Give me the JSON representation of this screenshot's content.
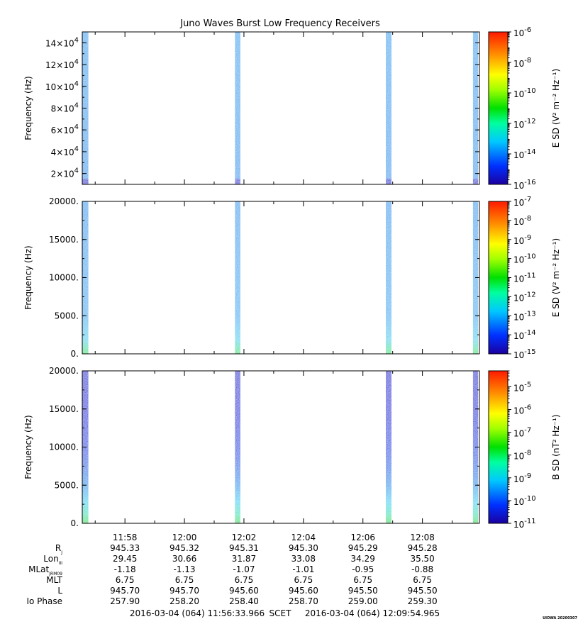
{
  "title": "Juno Waves Burst Low Frequency Receivers",
  "credit": "UIOWA 20200307",
  "time_axis": {
    "tick_labels": [
      "11:58",
      "12:00",
      "12:02",
      "12:04",
      "12:06",
      "12:08"
    ],
    "tick_minutes": [
      718,
      720,
      722,
      724,
      726,
      728
    ],
    "start_minutes": 716.5655,
    "end_minutes": 729.9161
  },
  "bursts": [
    {
      "start": 716.57,
      "end": 716.77
    },
    {
      "start": 721.7,
      "end": 721.88
    },
    {
      "start": 726.77,
      "end": 726.96
    },
    {
      "start": 729.7,
      "end": 729.87
    }
  ],
  "panels": [
    {
      "ylabel": "Frequency (Hz)",
      "yticks": [
        {
          "value": 20000,
          "mant": "2×10",
          "exp": "4"
        },
        {
          "value": 40000,
          "mant": "4×10",
          "exp": "4"
        },
        {
          "value": 60000,
          "mant": "6×10",
          "exp": "4"
        },
        {
          "value": 80000,
          "mant": "8×10",
          "exp": "4"
        },
        {
          "value": 100000,
          "mant": "10×10",
          "exp": "4"
        },
        {
          "value": 120000,
          "mant": "12×10",
          "exp": "4"
        },
        {
          "value": 140000,
          "mant": "14×10",
          "exp": "4"
        }
      ],
      "ylim": [
        10000,
        150000
      ],
      "cb_label": "E SD (V² m⁻² Hz⁻¹)",
      "cb_range_exp": [
        -16,
        -6
      ],
      "cb_ticks": [
        "-16",
        "-14",
        "-12",
        "-10",
        "-8",
        "-6"
      ],
      "cb_tick_exps": [
        -16,
        -14,
        -12,
        -10,
        -8,
        -6
      ]
    },
    {
      "ylabel": "Frequency (Hz)",
      "yticks": [
        {
          "value": 0,
          "label": "0."
        },
        {
          "value": 5000,
          "label": "5000."
        },
        {
          "value": 10000,
          "label": "10000."
        },
        {
          "value": 15000,
          "label": "15000."
        },
        {
          "value": 20000,
          "label": "20000."
        }
      ],
      "ylim": [
        0,
        20000
      ],
      "cb_label": "E SD (V² m⁻² Hz⁻¹)",
      "cb_range_exp": [
        -15,
        -7
      ],
      "cb_ticks": [
        "-15",
        "-14",
        "-13",
        "-12",
        "-11",
        "-10",
        "-9",
        "-8",
        "-7"
      ],
      "cb_tick_exps": [
        -15,
        -14,
        -13,
        -12,
        -11,
        -10,
        -9,
        -8,
        -7
      ]
    },
    {
      "ylabel": "Frequency (Hz)",
      "yticks": [
        {
          "value": 0,
          "label": "0."
        },
        {
          "value": 5000,
          "label": "5000."
        },
        {
          "value": 10000,
          "label": "10000."
        },
        {
          "value": 15000,
          "label": "15000."
        },
        {
          "value": 20000,
          "label": "20000."
        }
      ],
      "ylim": [
        0,
        20000
      ],
      "cb_label": "B SD (nT² Hz⁻¹)",
      "cb_range_exp": [
        -11,
        -4.3
      ],
      "cb_ticks": [
        "-11",
        "-10",
        "-9",
        "-8",
        "-7",
        "-6",
        "-5"
      ],
      "cb_tick_exps": [
        -11,
        -10,
        -9,
        -8,
        -7,
        -6,
        -5
      ]
    }
  ],
  "ephemeris": {
    "rows": [
      {
        "label": "R",
        "sub": "J",
        "values": [
          "945.33",
          "945.32",
          "945.31",
          "945.30",
          "945.29",
          "945.28"
        ]
      },
      {
        "label": "Lon",
        "sub": "III",
        "values": [
          "29.45",
          "30.66",
          "31.87",
          "33.08",
          "34.29",
          "35.50"
        ]
      },
      {
        "label": "MLat",
        "sub": "JRM09",
        "values": [
          "-1.18",
          "-1.13",
          "-1.07",
          "-1.01",
          "-0.95",
          "-0.88"
        ]
      },
      {
        "label": "MLT",
        "sub": "",
        "values": [
          "6.75",
          "6.75",
          "6.75",
          "6.75",
          "6.75",
          "6.75"
        ]
      },
      {
        "label": "L",
        "sub": "",
        "values": [
          "945.70",
          "945.70",
          "945.60",
          "945.60",
          "945.50",
          "945.50"
        ]
      },
      {
        "label": "Io Phase",
        "sub": "",
        "values": [
          "257.90",
          "258.20",
          "258.40",
          "258.70",
          "259.00",
          "259.30"
        ]
      }
    ]
  },
  "footer": {
    "start": "2016-03-04 (064) 11:56:33.966",
    "frame": "SCET",
    "end": "2016-03-04 (064) 12:09:54.965"
  },
  "chart_data": [
    {
      "type": "heatmap",
      "title": "Juno Waves Burst Low Frequency Receivers",
      "ylabel": "Frequency (Hz)",
      "ylim": [
        10000,
        150000
      ],
      "colorbar_label": "E SD (V² m⁻² Hz⁻¹)",
      "colorbar_range": [
        "1e-16",
        "1e-6"
      ],
      "x_ticks": [
        "11:58",
        "12:00",
        "12:02",
        "12:04",
        "12:06",
        "12:08"
      ],
      "bursts_at": [
        "11:56:34",
        "12:01:42",
        "12:06:46",
        "12:09:42"
      ],
      "typical_intensity": "1e-14",
      "low_band_intensity": "1e-16"
    },
    {
      "type": "heatmap",
      "ylabel": "Frequency (Hz)",
      "ylim": [
        0,
        20000
      ],
      "colorbar_label": "E SD (V² m⁻² Hz⁻¹)",
      "colorbar_range": [
        "1e-15",
        "1e-7"
      ],
      "x_ticks": [
        "11:58",
        "12:00",
        "12:02",
        "12:04",
        "12:06",
        "12:08"
      ],
      "typical_intensity": "1e-13",
      "low_band_intensity": "1e-12"
    },
    {
      "type": "heatmap",
      "ylabel": "Frequency (Hz)",
      "ylim": [
        0,
        20000
      ],
      "colorbar_label": "B SD (nT² Hz⁻¹)",
      "colorbar_range": [
        "1e-11",
        "1e-4"
      ],
      "x_ticks": [
        "11:58",
        "12:00",
        "12:02",
        "12:04",
        "12:06",
        "12:08"
      ],
      "typical_intensity": "1e-10",
      "low_band_intensity": "1e-8"
    }
  ]
}
